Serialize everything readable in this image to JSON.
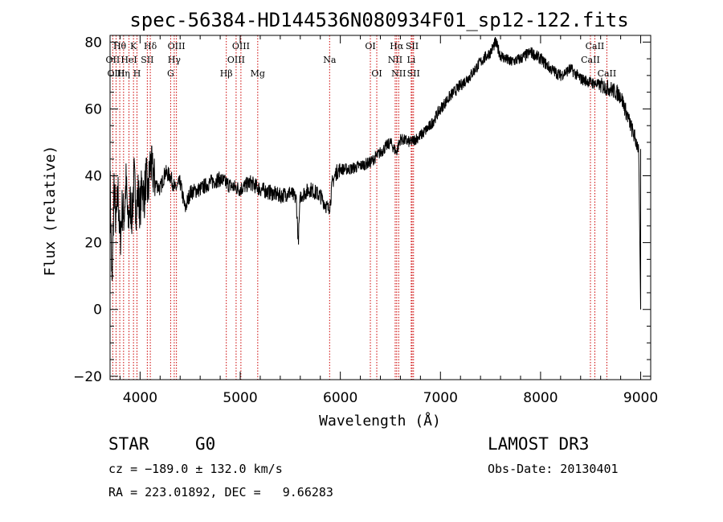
{
  "chart_data": {
    "type": "line",
    "title": "spec-56384-HD144536N080934F01_sp12-122.fits",
    "xlabel": "Wavelength (Å)",
    "ylabel": "Flux (relative)",
    "xlim": [
      3700,
      9100
    ],
    "ylim": [
      -21,
      82
    ],
    "x_ticks": [
      4000,
      5000,
      6000,
      7000,
      8000,
      9000
    ],
    "y_ticks": [
      -20,
      0,
      20,
      40,
      60,
      80
    ],
    "grid": false,
    "series": [
      {
        "name": "flux",
        "x": [
          3700,
          3720,
          3740,
          3760,
          3780,
          3800,
          3820,
          3840,
          3860,
          3880,
          3900,
          3920,
          3940,
          3960,
          3980,
          4000,
          4020,
          4040,
          4060,
          4080,
          4100,
          4150,
          4200,
          4250,
          4300,
          4350,
          4400,
          4450,
          4500,
          4600,
          4700,
          4800,
          4900,
          5000,
          5100,
          5200,
          5300,
          5400,
          5500,
          5560,
          5580,
          5600,
          5700,
          5800,
          5880,
          5900,
          5920,
          5960,
          6000,
          6100,
          6200,
          6300,
          6400,
          6500,
          6560,
          6600,
          6700,
          6800,
          6900,
          7000,
          7100,
          7200,
          7300,
          7400,
          7500,
          7550,
          7600,
          7700,
          7800,
          7900,
          8000,
          8100,
          8200,
          8300,
          8400,
          8500,
          8600,
          8700,
          8800,
          8900,
          8980,
          9000
        ],
        "values": [
          40,
          5,
          38,
          25,
          35,
          20,
          30,
          28,
          38,
          25,
          32,
          28,
          40,
          30,
          35,
          30,
          38,
          33,
          40,
          34,
          44,
          38,
          36,
          41,
          40,
          36,
          38,
          30,
          35,
          36,
          38,
          39,
          37,
          36,
          38,
          36,
          35,
          34,
          35,
          33,
          20,
          34,
          36,
          34,
          30,
          32,
          38,
          41,
          42,
          42,
          43,
          44,
          47,
          50,
          47,
          51,
          50,
          52,
          55,
          60,
          64,
          67,
          70,
          74,
          77,
          80,
          76,
          74,
          75,
          77,
          75,
          72,
          70,
          72,
          69,
          68,
          67,
          66,
          64,
          55,
          48,
          0
        ]
      }
    ],
    "spectral_lines": [
      {
        "label": "Hθ",
        "x": 3797,
        "row": 1
      },
      {
        "label": "K",
        "x": 3934,
        "row": 1
      },
      {
        "label": "Hδ",
        "x": 4102,
        "row": 1
      },
      {
        "label": "OIII",
        "x": 4363,
        "row": 1
      },
      {
        "label": "OIII",
        "x": 5007,
        "row": 1
      },
      {
        "label": "OI",
        "x": 6300,
        "row": 1
      },
      {
        "label": "Hα",
        "x": 6563,
        "row": 1
      },
      {
        "label": "SII",
        "x": 6717,
        "row": 1
      },
      {
        "label": "CaII",
        "x": 8542,
        "row": 1
      },
      {
        "label": "OII",
        "x": 3727,
        "row": 2
      },
      {
        "label": "HeI",
        "x": 3889,
        "row": 2
      },
      {
        "label": "SII",
        "x": 4072,
        "row": 2
      },
      {
        "label": "Hγ",
        "x": 4341,
        "row": 2
      },
      {
        "label": "OIII",
        "x": 4959,
        "row": 2
      },
      {
        "label": "Na",
        "x": 5893,
        "row": 2
      },
      {
        "label": "NII",
        "x": 6548,
        "row": 2
      },
      {
        "label": "Li",
        "x": 6708,
        "row": 2
      },
      {
        "label": "CaII",
        "x": 8498,
        "row": 2
      },
      {
        "label": "OIII",
        "x": 3760,
        "row": 3
      },
      {
        "label": "Hη",
        "x": 3835,
        "row": 3
      },
      {
        "label": "H",
        "x": 3969,
        "row": 3
      },
      {
        "label": "G",
        "x": 4305,
        "row": 3
      },
      {
        "label": "Hβ",
        "x": 4861,
        "row": 3
      },
      {
        "label": "Mg",
        "x": 5175,
        "row": 3
      },
      {
        "label": "OI",
        "x": 6364,
        "row": 3
      },
      {
        "label": "NII",
        "x": 6583,
        "row": 3
      },
      {
        "label": "SII",
        "x": 6731,
        "row": 3
      },
      {
        "label": "CaII",
        "x": 8662,
        "row": 3
      }
    ]
  },
  "info": {
    "object_class": "STAR",
    "subclass": "G0",
    "redshift": "cz = −189.0 ± 132.0 km/s",
    "coords": "RA = 223.01892, DEC =   9.66283",
    "survey": "LAMOST DR3",
    "obs_date": "Obs-Date: 20130401"
  },
  "colors": {
    "line": "#000000",
    "marker": "#cc0000"
  }
}
